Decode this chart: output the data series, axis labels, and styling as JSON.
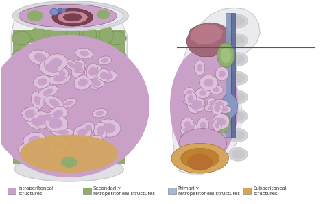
{
  "background_color": "#ffffff",
  "legend_items": [
    {
      "label": "Intraperitoneal\nstructures",
      "color": "#c9a0c8"
    },
    {
      "label": "Secondarily\nretroperitoneal structures",
      "color": "#8fac6e"
    },
    {
      "label": "Primarily\nretroperitoneal structures",
      "color": "#a8b8d8"
    },
    {
      "label": "Subperitoneal\nstructures",
      "color": "#d4a55a"
    }
  ],
  "figsize": [
    4.74,
    2.98
  ],
  "dpi": 100,
  "colors": {
    "intra": "#c9a0c8",
    "intra_dark": "#8a607a",
    "intra_light": "#ddc0dc",
    "secondary_retro": "#8fac6e",
    "primary_retro": "#8898c0",
    "primary_retro_dark": "#3a5a90",
    "subperitoneal": "#d4a55a",
    "subperitoneal_dark": "#a07030",
    "body_wall": "#e8e8ec",
    "body_wall_edge": "#c8c8d0",
    "spine": "#d0d0d8",
    "stomach_dark": "#7a4050",
    "liver_dark": "#8a5060"
  }
}
